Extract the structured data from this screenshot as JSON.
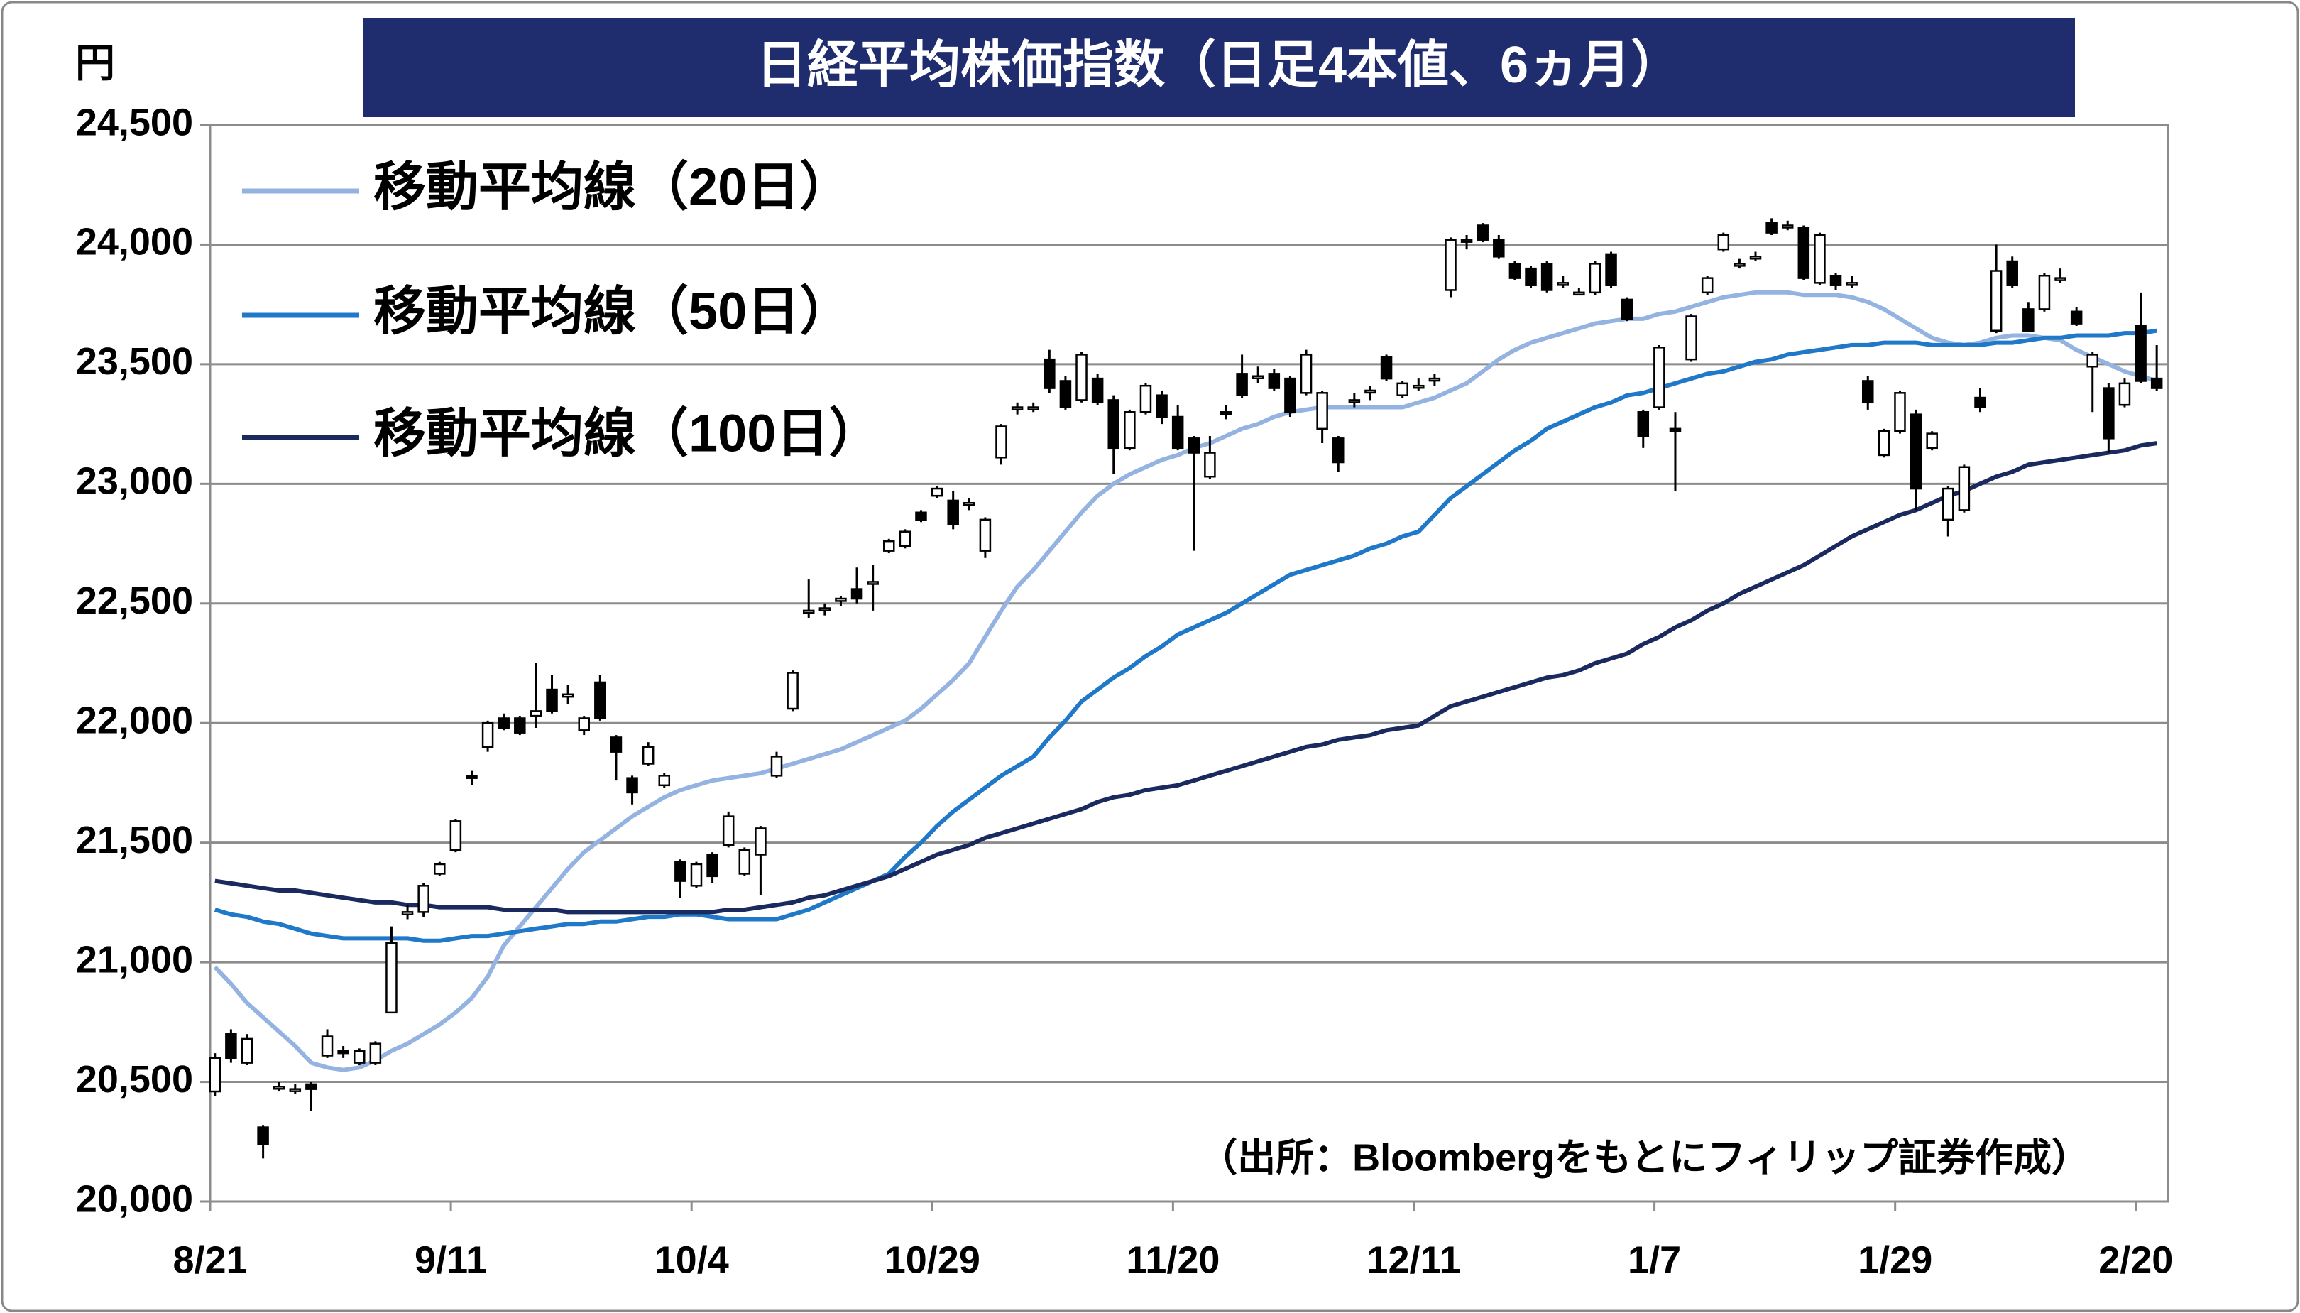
{
  "chart_data": {
    "type": "candlestick",
    "title": "日経平均株価指数（日足4本値、6ヵ月）",
    "y_label": "円",
    "note": "（出所：Bloombergをもとにフィリップ証券作成）",
    "categories": [
      "8/21",
      null,
      null,
      null,
      null,
      null,
      null,
      null,
      null,
      null,
      null,
      null,
      null,
      null,
      null,
      "9/11",
      null,
      null,
      null,
      null,
      null,
      null,
      null,
      null,
      null,
      null,
      null,
      null,
      null,
      null,
      "10/4",
      null,
      null,
      null,
      null,
      null,
      null,
      null,
      null,
      null,
      null,
      null,
      null,
      null,
      null,
      "10/29",
      null,
      null,
      null,
      null,
      null,
      null,
      null,
      null,
      null,
      null,
      null,
      null,
      null,
      null,
      "11/20",
      null,
      null,
      null,
      null,
      null,
      null,
      null,
      null,
      null,
      null,
      null,
      null,
      null,
      null,
      "12/11",
      null,
      null,
      null,
      null,
      null,
      null,
      null,
      null,
      null,
      null,
      null,
      null,
      null,
      null,
      "1/7",
      null,
      null,
      null,
      null,
      null,
      null,
      null,
      null,
      null,
      null,
      null,
      null,
      null,
      null,
      "1/29",
      null,
      null,
      null,
      null,
      null,
      null,
      null,
      null,
      null,
      null,
      null,
      null,
      null,
      null,
      "2/20",
      null
    ],
    "open": [
      20460,
      20700,
      20580,
      20310,
      20480,
      20470,
      20490,
      20610,
      20630,
      20580,
      20580,
      20790,
      21200,
      21210,
      21370,
      21470,
      21780,
      21900,
      22020,
      22020,
      22030,
      22140,
      22110,
      21970,
      22170,
      21940,
      21770,
      21830,
      21740,
      21420,
      21320,
      21450,
      21490,
      21370,
      21450,
      21780,
      22060,
      22470,
      22480,
      22510,
      22560,
      22590,
      22720,
      22740,
      22880,
      22950,
      22930,
      22920,
      22720,
      23110,
      23320,
      23320,
      23520,
      23430,
      23350,
      23440,
      23350,
      23150,
      23300,
      23370,
      23280,
      23190,
      23030,
      23300,
      23460,
      23450,
      23460,
      23440,
      23380,
      23230,
      23190,
      23350,
      23390,
      23530,
      23370,
      23410,
      23440,
      23810,
      24020,
      24080,
      24020,
      23920,
      23900,
      23920,
      23840,
      23800,
      23800,
      23960,
      23770,
      23300,
      23320,
      23230,
      23520,
      23800,
      23980,
      23920,
      23950,
      24090,
      24080,
      24070,
      23840,
      23870,
      23840,
      23430,
      23120,
      23220,
      23290,
      23150,
      22850,
      22890,
      23360,
      23640,
      23930,
      23730,
      23730,
      23860,
      23720,
      23490,
      23400,
      23330,
      23660,
      23440
    ],
    "high": [
      20620,
      20720,
      20700,
      20320,
      20500,
      20490,
      20500,
      20720,
      20650,
      20640,
      20670,
      21150,
      21240,
      21330,
      21420,
      21600,
      21800,
      22010,
      22040,
      22030,
      22250,
      22200,
      22160,
      22030,
      22200,
      21950,
      21780,
      21920,
      21790,
      21430,
      21420,
      21460,
      21630,
      21480,
      21570,
      21880,
      22220,
      22600,
      22500,
      22530,
      22650,
      22660,
      22770,
      22810,
      22890,
      22990,
      22970,
      22940,
      22860,
      23250,
      23340,
      23340,
      23560,
      23450,
      23550,
      23460,
      23370,
      23310,
      23420,
      23390,
      23330,
      23200,
      23200,
      23330,
      23540,
      23490,
      23480,
      23450,
      23560,
      23390,
      23200,
      23380,
      23410,
      23540,
      23430,
      23440,
      23460,
      24030,
      24040,
      24090,
      24040,
      23930,
      23910,
      23930,
      23870,
      23820,
      23930,
      23970,
      23780,
      23310,
      23580,
      23300,
      23710,
      23870,
      24050,
      23940,
      23970,
      24110,
      24100,
      24080,
      24050,
      23880,
      23870,
      23450,
      23230,
      23390,
      23310,
      23220,
      22990,
      23080,
      23400,
      24000,
      23950,
      23760,
      23880,
      23900,
      23740,
      23550,
      23420,
      23440,
      23800,
      23580
    ],
    "low": [
      20440,
      20580,
      20570,
      20180,
      20460,
      20450,
      20380,
      20600,
      20600,
      20570,
      20570,
      20790,
      21180,
      21190,
      21360,
      21460,
      21740,
      21880,
      21970,
      21950,
      21980,
      22040,
      22080,
      21950,
      22010,
      21760,
      21660,
      21820,
      21730,
      21270,
      21310,
      21330,
      21480,
      21360,
      21280,
      21770,
      22050,
      22440,
      22450,
      22490,
      22500,
      22470,
      22710,
      22730,
      22840,
      22940,
      22810,
      22890,
      22690,
      23080,
      23290,
      23300,
      23380,
      23310,
      23340,
      23330,
      23040,
      23140,
      23290,
      23250,
      23140,
      22720,
      23020,
      23270,
      23360,
      23420,
      23390,
      23280,
      23370,
      23170,
      23050,
      23320,
      23350,
      23430,
      23360,
      23390,
      23410,
      23780,
      23980,
      24010,
      23940,
      23850,
      23820,
      23800,
      23820,
      23790,
      23790,
      23820,
      23680,
      23150,
      23310,
      22970,
      23510,
      23790,
      23970,
      23900,
      23930,
      24040,
      24060,
      23850,
      23830,
      23810,
      23820,
      23310,
      23110,
      23210,
      22890,
      23140,
      22780,
      22880,
      23300,
      23630,
      23820,
      23640,
      23720,
      23840,
      23660,
      23300,
      23130,
      23320,
      23420,
      23390
    ],
    "close": [
      20600,
      20600,
      20680,
      20240,
      20480,
      20470,
      20470,
      20690,
      20620,
      20630,
      20660,
      21080,
      21210,
      21320,
      21410,
      21590,
      21770,
      22000,
      21980,
      21960,
      22050,
      22050,
      22120,
      22020,
      22020,
      21880,
      21710,
      21900,
      21780,
      21340,
      21410,
      21360,
      21610,
      21470,
      21560,
      21860,
      22210,
      22470,
      22480,
      22520,
      22520,
      22590,
      22760,
      22800,
      22850,
      22980,
      22830,
      22920,
      22850,
      23240,
      23320,
      23320,
      23400,
      23320,
      23540,
      23340,
      23150,
      23300,
      23410,
      23280,
      23150,
      23130,
      23130,
      23300,
      23370,
      23450,
      23400,
      23300,
      23540,
      23380,
      23090,
      23350,
      23390,
      23440,
      23420,
      23410,
      23440,
      24020,
      24020,
      24020,
      23950,
      23860,
      23830,
      23810,
      23840,
      23800,
      23920,
      23830,
      23690,
      23200,
      23570,
      23220,
      23700,
      23860,
      24040,
      23920,
      23950,
      24050,
      24080,
      23860,
      24040,
      23830,
      23840,
      23340,
      23220,
      23380,
      22980,
      23210,
      22980,
      23070,
      23320,
      23890,
      23830,
      23640,
      23870,
      23860,
      23670,
      23540,
      23190,
      23420,
      23430,
      23400
    ],
    "up_color": "#ffffff",
    "down_color": "#000000",
    "series": [
      {
        "name": "移動平均線（20日）",
        "color": "#95b3e0",
        "values": [
          20980,
          20910,
          20830,
          20770,
          20710,
          20650,
          20580,
          20560,
          20550,
          20560,
          20590,
          20630,
          20660,
          20700,
          20740,
          20790,
          20850,
          20940,
          21070,
          21150,
          21230,
          21310,
          21390,
          21460,
          21510,
          21560,
          21610,
          21650,
          21690,
          21720,
          21740,
          21760,
          21770,
          21780,
          21790,
          21810,
          21830,
          21850,
          21870,
          21890,
          21920,
          21950,
          21980,
          22010,
          22060,
          22120,
          22180,
          22250,
          22360,
          22470,
          22570,
          22640,
          22720,
          22800,
          22880,
          22950,
          23000,
          23040,
          23070,
          23100,
          23120,
          23150,
          23170,
          23200,
          23230,
          23250,
          23280,
          23300,
          23310,
          23320,
          23320,
          23320,
          23320,
          23320,
          23320,
          23340,
          23360,
          23390,
          23420,
          23470,
          23520,
          23560,
          23590,
          23610,
          23630,
          23650,
          23670,
          23680,
          23690,
          23690,
          23710,
          23720,
          23740,
          23760,
          23780,
          23790,
          23800,
          23800,
          23800,
          23790,
          23790,
          23790,
          23780,
          23760,
          23730,
          23690,
          23650,
          23610,
          23590,
          23580,
          23590,
          23610,
          23620,
          23620,
          23610,
          23600,
          23560,
          23530,
          23500,
          23470,
          23450,
          23430
        ]
      },
      {
        "name": "移動平均線（50日）",
        "color": "#1f78c8",
        "values": [
          21220,
          21200,
          21190,
          21170,
          21160,
          21140,
          21120,
          21110,
          21100,
          21100,
          21100,
          21100,
          21100,
          21090,
          21090,
          21100,
          21110,
          21110,
          21120,
          21130,
          21140,
          21150,
          21160,
          21160,
          21170,
          21170,
          21180,
          21190,
          21190,
          21200,
          21200,
          21190,
          21180,
          21180,
          21180,
          21180,
          21200,
          21220,
          21250,
          21280,
          21310,
          21340,
          21370,
          21440,
          21500,
          21570,
          21630,
          21680,
          21730,
          21780,
          21820,
          21860,
          21940,
          22010,
          22090,
          22140,
          22190,
          22230,
          22280,
          22320,
          22370,
          22400,
          22430,
          22460,
          22500,
          22540,
          22580,
          22620,
          22640,
          22660,
          22680,
          22700,
          22730,
          22750,
          22780,
          22800,
          22870,
          22940,
          22990,
          23040,
          23090,
          23140,
          23180,
          23230,
          23260,
          23290,
          23320,
          23340,
          23370,
          23380,
          23400,
          23420,
          23440,
          23460,
          23470,
          23490,
          23510,
          23520,
          23540,
          23550,
          23560,
          23570,
          23580,
          23580,
          23590,
          23590,
          23590,
          23580,
          23580,
          23580,
          23580,
          23590,
          23590,
          23600,
          23610,
          23610,
          23620,
          23620,
          23620,
          23630,
          23630,
          23640
        ]
      },
      {
        "name": "移動平均線（100日）",
        "color": "#1a2a5e",
        "values": [
          21340,
          21330,
          21320,
          21310,
          21300,
          21300,
          21290,
          21280,
          21270,
          21260,
          21250,
          21250,
          21240,
          21240,
          21230,
          21230,
          21230,
          21230,
          21220,
          21220,
          21220,
          21220,
          21210,
          21210,
          21210,
          21210,
          21210,
          21210,
          21210,
          21210,
          21210,
          21210,
          21220,
          21220,
          21230,
          21240,
          21250,
          21270,
          21280,
          21300,
          21320,
          21340,
          21360,
          21390,
          21420,
          21450,
          21470,
          21490,
          21520,
          21540,
          21560,
          21580,
          21600,
          21620,
          21640,
          21670,
          21690,
          21700,
          21720,
          21730,
          21740,
          21760,
          21780,
          21800,
          21820,
          21840,
          21860,
          21880,
          21900,
          21910,
          21930,
          21940,
          21950,
          21970,
          21980,
          21990,
          22030,
          22070,
          22090,
          22110,
          22130,
          22150,
          22170,
          22190,
          22200,
          22220,
          22250,
          22270,
          22290,
          22330,
          22360,
          22400,
          22430,
          22470,
          22500,
          22540,
          22570,
          22600,
          22630,
          22660,
          22700,
          22740,
          22780,
          22810,
          22840,
          22870,
          22890,
          22920,
          22950,
          22970,
          23000,
          23030,
          23050,
          23080,
          23090,
          23100,
          23110,
          23120,
          23130,
          23140,
          23160,
          23170
        ]
      }
    ],
    "ylim": [
      20000,
      24500
    ],
    "yticks": [
      {
        "value": 20000,
        "label": "20,000"
      },
      {
        "value": 20500,
        "label": "20,500"
      },
      {
        "value": 21000,
        "label": "21,000"
      },
      {
        "value": 21500,
        "label": "21,500"
      },
      {
        "value": 22000,
        "label": "22,000"
      },
      {
        "value": 22500,
        "label": "22,500"
      },
      {
        "value": 23000,
        "label": "23,000"
      },
      {
        "value": 23500,
        "label": "23,500"
      },
      {
        "value": 24000,
        "label": "24,000"
      },
      {
        "value": 24500,
        "label": "24,500"
      }
    ],
    "grid": true
  }
}
